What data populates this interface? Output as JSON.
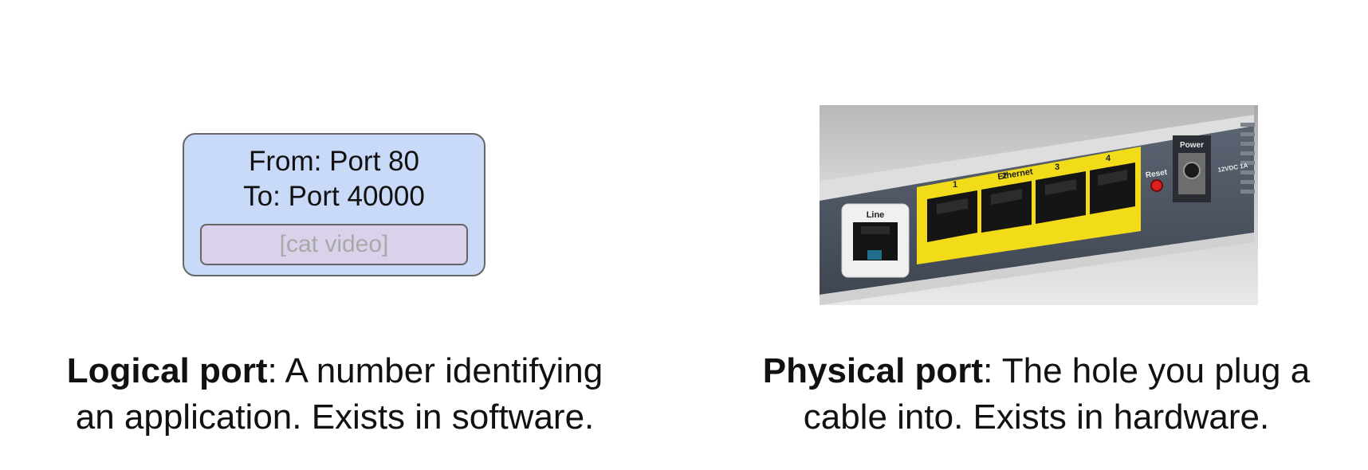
{
  "logical": {
    "from_label": "From: Port 80",
    "to_label": "To: Port 40000",
    "payload_label": "[cat video]",
    "caption_term": "Logical port",
    "caption_rest": ": A number identifying",
    "caption_line2": "an application. Exists in software."
  },
  "physical": {
    "photo": {
      "line_label": "Line",
      "ethernet_label": "Ethernet",
      "port_numbers": [
        "1",
        "2",
        "3",
        "4"
      ],
      "reset_label": "Reset",
      "power_label": "Power",
      "voltage_label": "12VDC 1A"
    },
    "caption_term": "Physical port",
    "caption_rest": ": The hole you plug a",
    "caption_line2": "cable into. Exists in hardware."
  },
  "colors": {
    "packet_fill": "#c9d9f8",
    "payload_fill": "#d9d2ea",
    "ethernet_panel": "#f2dc1a",
    "reset_button": "#e0201c"
  }
}
